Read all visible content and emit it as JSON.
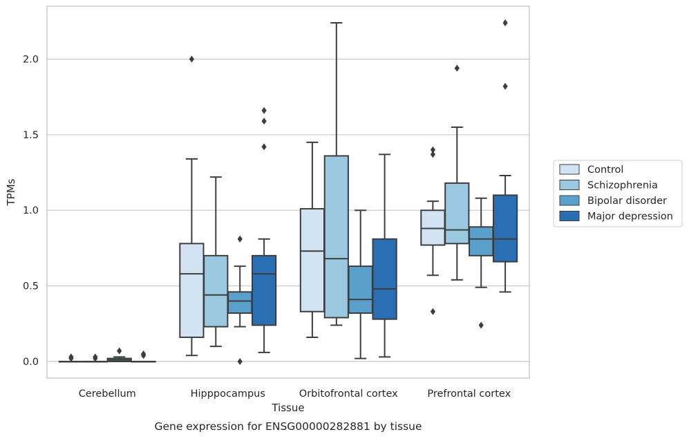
{
  "chart_data": {
    "type": "box",
    "title": "",
    "caption": "Gene expression for ENSG00000282881 by tissue",
    "xlabel": "Tissue",
    "ylabel": "TPMs",
    "ylim": [
      -0.11,
      2.35
    ],
    "yticks": [
      0.0,
      0.5,
      1.0,
      1.5,
      2.0
    ],
    "ytick_labels": [
      "0.0",
      "0.5",
      "1.0",
      "1.5",
      "2.0"
    ],
    "grid": "horizontal",
    "legend_position": "right",
    "categories": [
      "Cerebellum",
      "Hipppocampus",
      "Orbitofrontal cortex",
      "Prefrontal cortex"
    ],
    "series": [
      {
        "name": "Control",
        "color": "#d2e3f3",
        "boxes": [
          {
            "whisker_low": 0.0,
            "q1": 0.0,
            "median": 0.0,
            "q3": 0.0,
            "whisker_high": 0.0,
            "outliers": [
              0.03,
              0.02
            ]
          },
          {
            "whisker_low": 0.04,
            "q1": 0.16,
            "median": 0.58,
            "q3": 0.78,
            "whisker_high": 1.34,
            "outliers": [
              2.0
            ]
          },
          {
            "whisker_low": 0.16,
            "q1": 0.33,
            "median": 0.73,
            "q3": 1.01,
            "whisker_high": 1.45,
            "outliers": []
          },
          {
            "whisker_low": 0.57,
            "q1": 0.77,
            "median": 0.88,
            "q3": 1.0,
            "whisker_high": 1.06,
            "outliers": [
              1.4,
              1.37,
              0.33
            ]
          }
        ]
      },
      {
        "name": "Schizophrenia",
        "color": "#9ac8e0",
        "boxes": [
          {
            "whisker_low": 0.0,
            "q1": 0.0,
            "median": 0.0,
            "q3": 0.0,
            "whisker_high": 0.0,
            "outliers": [
              0.03,
              0.02
            ]
          },
          {
            "whisker_low": 0.1,
            "q1": 0.23,
            "median": 0.44,
            "q3": 0.7,
            "whisker_high": 1.22,
            "outliers": []
          },
          {
            "whisker_low": 0.24,
            "q1": 0.29,
            "median": 0.68,
            "q3": 1.36,
            "whisker_high": 2.24,
            "outliers": []
          },
          {
            "whisker_low": 0.54,
            "q1": 0.78,
            "median": 0.87,
            "q3": 1.18,
            "whisker_high": 1.55,
            "outliers": [
              1.94
            ]
          }
        ]
      },
      {
        "name": "Bipolar disorder",
        "color": "#5aa0cd",
        "boxes": [
          {
            "whisker_low": 0.0,
            "q1": 0.0,
            "median": 0.01,
            "q3": 0.02,
            "whisker_high": 0.03,
            "outliers": [
              0.07
            ]
          },
          {
            "whisker_low": 0.23,
            "q1": 0.32,
            "median": 0.4,
            "q3": 0.46,
            "whisker_high": 0.63,
            "outliers": [
              0.81,
              0.0
            ]
          },
          {
            "whisker_low": 0.02,
            "q1": 0.32,
            "median": 0.41,
            "q3": 0.63,
            "whisker_high": 1.0,
            "outliers": []
          },
          {
            "whisker_low": 0.49,
            "q1": 0.7,
            "median": 0.81,
            "q3": 0.89,
            "whisker_high": 1.08,
            "outliers": [
              0.24
            ]
          }
        ]
      },
      {
        "name": "Major depression",
        "color": "#2a6eb3",
        "boxes": [
          {
            "whisker_low": 0.0,
            "q1": 0.0,
            "median": 0.0,
            "q3": 0.0,
            "whisker_high": 0.0,
            "outliers": [
              0.05,
              0.04
            ]
          },
          {
            "whisker_low": 0.06,
            "q1": 0.24,
            "median": 0.58,
            "q3": 0.7,
            "whisker_high": 0.81,
            "outliers": [
              1.66,
              1.59,
              1.42
            ]
          },
          {
            "whisker_low": 0.03,
            "q1": 0.28,
            "median": 0.48,
            "q3": 0.81,
            "whisker_high": 1.37,
            "outliers": []
          },
          {
            "whisker_low": 0.46,
            "q1": 0.66,
            "median": 0.81,
            "q3": 1.1,
            "whisker_high": 1.23,
            "outliers": [
              2.24,
              1.82
            ]
          }
        ]
      }
    ]
  }
}
